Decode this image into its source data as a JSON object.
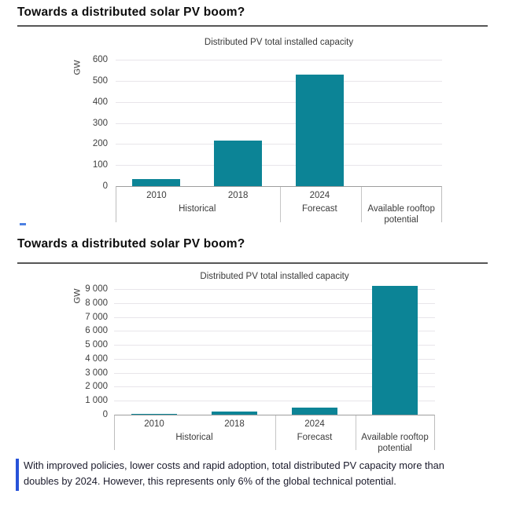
{
  "accent": {
    "bar_color": "#0c8496",
    "caption_accent_color": "#2753d9",
    "dash_color": "#4d80e2"
  },
  "slide1": {
    "title": "Towards a distributed solar PV boom?"
  },
  "slide2": {
    "title": "Towards a distributed solar PV boom?"
  },
  "caption": {
    "lines": [
      "With improved policies, lower costs and rapid adoption, total distributed PV capacity more than",
      "doubles by 2024. However, this represents only 6% of the global technical potential."
    ]
  },
  "chart_data": [
    {
      "type": "bar",
      "title": "Distributed PV total installed capacity",
      "ylabel": "GW",
      "categories": [
        "2010",
        "2018",
        "2024",
        "Available rooftop potential"
      ],
      "year_labels": [
        "2010",
        "2018",
        "2024",
        ""
      ],
      "group_labels": [
        "Historical",
        "Forecast",
        "Available rooftop potential"
      ],
      "group_spans": [
        2,
        1,
        1
      ],
      "values": [
        35,
        215,
        530,
        null
      ],
      "ylim": [
        0,
        600
      ],
      "yticks": [
        "600",
        "500",
        "400",
        "300",
        "200",
        "100",
        "0"
      ],
      "grid": true,
      "legend": "none",
      "note": "Available rooftop potential bar not yet shown in this frame"
    },
    {
      "type": "bar",
      "title": "Distributed PV total installed capacity",
      "ylabel": "GW",
      "categories": [
        "2010",
        "2018",
        "2024",
        "Available rooftop potential"
      ],
      "year_labels": [
        "2010",
        "2018",
        "2024",
        ""
      ],
      "group_labels": [
        "Historical",
        "Forecast",
        "Available rooftop potential"
      ],
      "group_spans": [
        2,
        1,
        1
      ],
      "values": [
        35,
        215,
        530,
        9200
      ],
      "ylim": [
        0,
        9000
      ],
      "yticks": [
        "9 000",
        "8 000",
        "7 000",
        "6 000",
        "5 000",
        "4 000",
        "3 000",
        "2 000",
        "1 000",
        "0"
      ],
      "grid": true,
      "legend": "none",
      "note": "Rooftop-potential bar exceeds the 9 000 GW top gridline"
    }
  ]
}
